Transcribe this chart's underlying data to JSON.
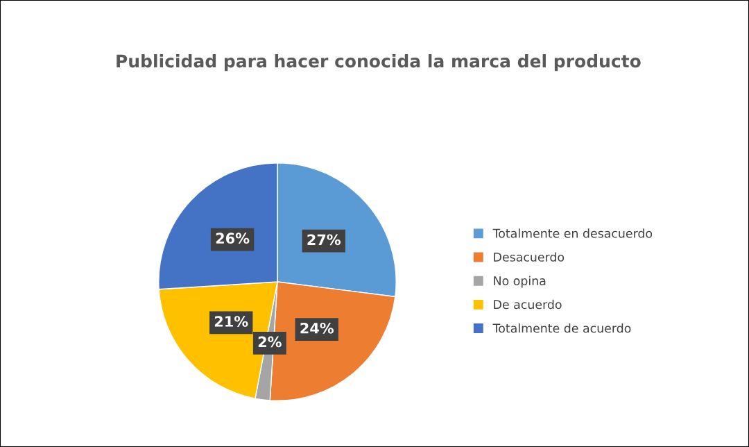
{
  "chart_data": {
    "type": "pie",
    "title": "Publicidad para hacer conocida la marca del producto",
    "categories": [
      "Totalmente en desacuerdo",
      "Desacuerdo",
      "No opina",
      "De acuerdo",
      "Totalmente de acuerdo"
    ],
    "values": [
      27,
      24,
      2,
      21,
      26
    ],
    "colors": [
      "#5b9bd5",
      "#ed7d31",
      "#a5a5a5",
      "#ffc000",
      "#4472c4"
    ],
    "value_labels": [
      "27%",
      "24%",
      "2%",
      "21%",
      "26%"
    ],
    "legend": "right"
  }
}
